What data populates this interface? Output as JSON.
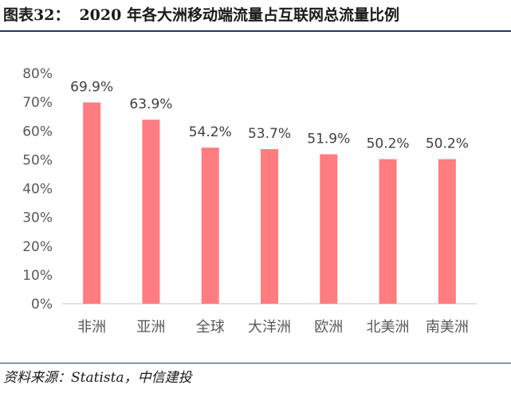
{
  "figure": {
    "label": "图表32：",
    "title": "2020 年各大洲移动端流量占互联网总流量比例",
    "source": "资料来源：Statista，中信建投"
  },
  "colors": {
    "bar": "#ff7c80",
    "axis": "#d9d9d9",
    "rule": "#1f3b70"
  },
  "chart_data": {
    "type": "bar",
    "title": "",
    "xlabel": "",
    "ylabel": "",
    "categories": [
      "非洲",
      "亚洲",
      "全球",
      "大洋洲",
      "欧洲",
      "北美洲",
      "南美洲"
    ],
    "values": [
      69.9,
      63.9,
      54.2,
      53.7,
      51.9,
      50.2,
      50.2
    ],
    "value_labels": [
      "69.9%",
      "63.9%",
      "54.2%",
      "53.7%",
      "51.9%",
      "50.2%",
      "50.2%"
    ],
    "ylim": [
      0,
      80
    ],
    "yticks": [
      0,
      10,
      20,
      30,
      40,
      50,
      60,
      70,
      80
    ],
    "ytick_labels": [
      "0%",
      "10%",
      "20%",
      "30%",
      "40%",
      "50%",
      "60%",
      "70%",
      "80%"
    ],
    "grid": false,
    "legend": "none"
  }
}
